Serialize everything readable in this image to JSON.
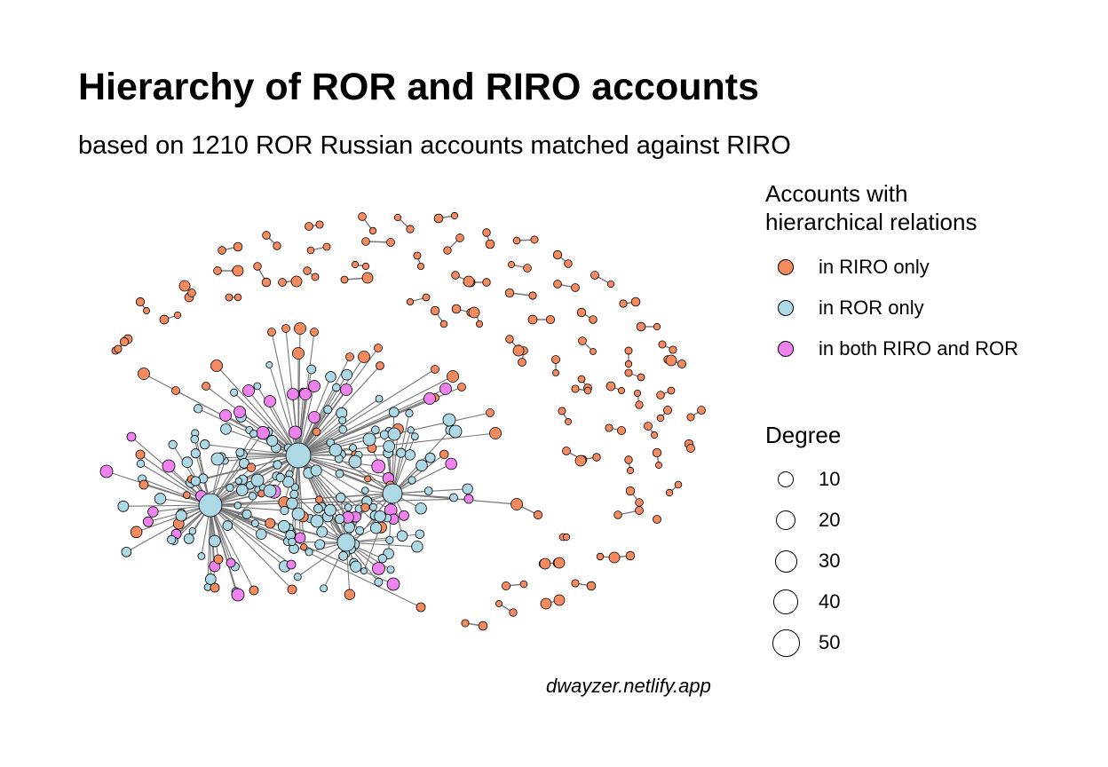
{
  "title": "Hierarchy of ROR and RIRO accounts",
  "subtitle": "based on 1210 ROR Russian accounts matched against RIRO",
  "caption": "dwayzer.netlify.app",
  "colors": {
    "riro_only": "#f58a5e",
    "ror_only": "#add8e6",
    "both": "#ee82ee",
    "edge": "#777777",
    "outline": "#000000"
  },
  "legend": {
    "color_title": "Accounts with\nhierarchical relations",
    "color_items": [
      {
        "label": "in RIRO only",
        "key": "riro_only"
      },
      {
        "label": "in ROR only",
        "key": "ror_only"
      },
      {
        "label": "in both RIRO and ROR",
        "key": "both"
      }
    ],
    "size_title": "Degree",
    "size_items": [
      {
        "label": "10",
        "value": 10
      },
      {
        "label": "20",
        "value": 20
      },
      {
        "label": "30",
        "value": 30
      },
      {
        "label": "40",
        "value": 40
      },
      {
        "label": "50",
        "value": 50
      }
    ]
  }
}
